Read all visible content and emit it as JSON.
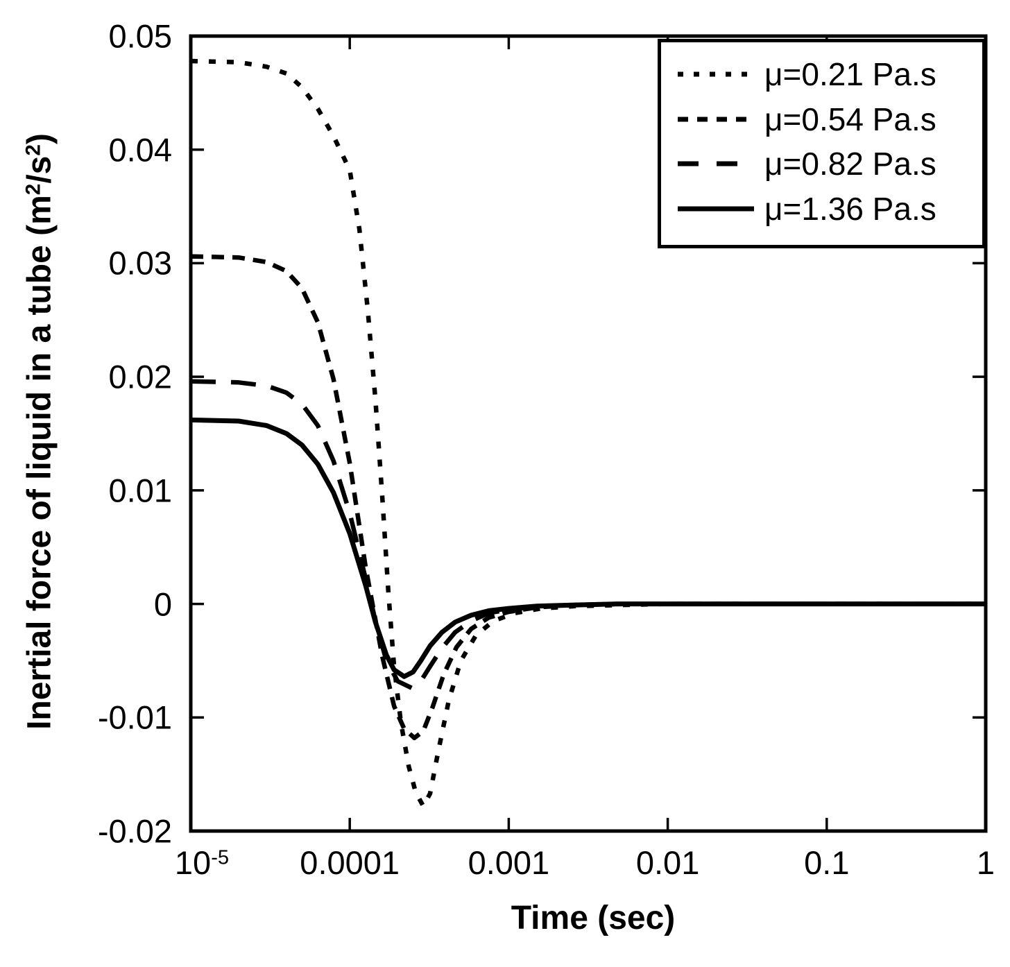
{
  "figure": {
    "background": "#ffffff",
    "ink": "#000000"
  },
  "chart_data": {
    "type": "line",
    "x_scale": "log",
    "grid": false,
    "xlabel": "Time (sec)",
    "ylabel_parts": {
      "pre": "Inertial force of liquid in a tube (m",
      "sup1": "2",
      "mid": "/s",
      "sup2": "2",
      "post": ")"
    },
    "xlim": [
      1e-05,
      1
    ],
    "ylim": [
      -0.02,
      0.05
    ],
    "x_ticks": [
      {
        "value": 1e-05,
        "label_base": "10",
        "label_exp": "-5"
      },
      {
        "value": 0.0001,
        "label": "0.0001"
      },
      {
        "value": 0.001,
        "label": "0.001"
      },
      {
        "value": 0.01,
        "label": "0.01"
      },
      {
        "value": 0.1,
        "label": "0.1"
      },
      {
        "value": 1,
        "label": "1"
      }
    ],
    "y_ticks": [
      {
        "value": 0.05,
        "label": "0.05"
      },
      {
        "value": 0.04,
        "label": "0.04"
      },
      {
        "value": 0.03,
        "label": "0.03"
      },
      {
        "value": 0.02,
        "label": "0.02"
      },
      {
        "value": 0.01,
        "label": "0.01"
      },
      {
        "value": 0,
        "label": "0"
      },
      {
        "value": -0.01,
        "label": "-0.01"
      },
      {
        "value": -0.02,
        "label": "-0.02"
      }
    ],
    "legend": {
      "position": "top-right",
      "entries": [
        {
          "label": "μ=0.21 Pa.s",
          "style": "dotted"
        },
        {
          "label": "μ=0.54 Pa.s",
          "style": "short-dash"
        },
        {
          "label": "μ=0.82 Pa.s",
          "style": "long-dash"
        },
        {
          "label": "μ=1.36 Pa.s",
          "style": "solid"
        }
      ]
    },
    "series": [
      {
        "name": "mu-0.21",
        "mu_pa_s": 0.21,
        "style": "dotted",
        "points": [
          [
            1e-05,
            0.0478
          ],
          [
            2e-05,
            0.0477
          ],
          [
            3e-05,
            0.0473
          ],
          [
            4e-05,
            0.0467
          ],
          [
            5e-05,
            0.0455
          ],
          [
            6.3e-05,
            0.0436
          ],
          [
            7.9e-05,
            0.0412
          ],
          [
            0.0001,
            0.0382
          ],
          [
            0.000115,
            0.033
          ],
          [
            0.00013,
            0.0258
          ],
          [
            0.000145,
            0.018
          ],
          [
            0.00016,
            0.0095
          ],
          [
            0.000175,
            0.001
          ],
          [
            0.00019,
            -0.0055
          ],
          [
            0.00021,
            -0.0105
          ],
          [
            0.000235,
            -0.0143
          ],
          [
            0.00026,
            -0.0166
          ],
          [
            0.00029,
            -0.0178
          ],
          [
            0.00032,
            -0.0167
          ],
          [
            0.00036,
            -0.013
          ],
          [
            0.00042,
            -0.0085
          ],
          [
            0.0005,
            -0.005
          ],
          [
            0.00062,
            -0.0028
          ],
          [
            0.0008,
            -0.0015
          ],
          [
            0.0011,
            -0.0008
          ],
          [
            0.0016,
            -0.0004
          ],
          [
            0.0026,
            -0.0002
          ],
          [
            0.005,
            -0.0001
          ],
          [
            0.01,
            0
          ],
          [
            0.1,
            0
          ],
          [
            1,
            0
          ]
        ]
      },
      {
        "name": "mu-0.54",
        "mu_pa_s": 0.54,
        "style": "short-dash",
        "points": [
          [
            1e-05,
            0.0306
          ],
          [
            2e-05,
            0.0305
          ],
          [
            3e-05,
            0.0301
          ],
          [
            4e-05,
            0.0293
          ],
          [
            5e-05,
            0.0278
          ],
          [
            6.3e-05,
            0.0248
          ],
          [
            7.9e-05,
            0.0198
          ],
          [
            0.0001,
            0.0124
          ],
          [
            0.000126,
            0.0032
          ],
          [
            0.00016,
            -0.0046
          ],
          [
            0.00019,
            -0.009
          ],
          [
            0.00022,
            -0.011
          ],
          [
            0.000255,
            -0.0118
          ],
          [
            0.00029,
            -0.0112
          ],
          [
            0.00033,
            -0.0092
          ],
          [
            0.00039,
            -0.0062
          ],
          [
            0.00047,
            -0.0038
          ],
          [
            0.00058,
            -0.0022
          ],
          [
            0.00075,
            -0.0012
          ],
          [
            0.001,
            -0.0007
          ],
          [
            0.0015,
            -0.0003
          ],
          [
            0.0025,
            -0.0001
          ],
          [
            0.005,
            0
          ],
          [
            0.01,
            0
          ],
          [
            0.1,
            0
          ],
          [
            1,
            0
          ]
        ]
      },
      {
        "name": "mu-0.82",
        "mu_pa_s": 0.82,
        "style": "long-dash",
        "points": [
          [
            1e-05,
            0.0196
          ],
          [
            2e-05,
            0.0195
          ],
          [
            3e-05,
            0.0192
          ],
          [
            4e-05,
            0.0186
          ],
          [
            5e-05,
            0.0176
          ],
          [
            6.3e-05,
            0.0157
          ],
          [
            7.9e-05,
            0.0126
          ],
          [
            0.0001,
            0.008
          ],
          [
            0.000126,
            0.0022
          ],
          [
            0.000148,
            -0.002
          ],
          [
            0.00017,
            -0.005
          ],
          [
            0.0002,
            -0.0068
          ],
          [
            0.000245,
            -0.0074
          ],
          [
            0.00028,
            -0.0068
          ],
          [
            0.00032,
            -0.0055
          ],
          [
            0.00038,
            -0.0039
          ],
          [
            0.00046,
            -0.0025
          ],
          [
            0.00058,
            -0.0015
          ],
          [
            0.00075,
            -0.0008
          ],
          [
            0.001,
            -0.0005
          ],
          [
            0.0016,
            -0.0002
          ],
          [
            0.0026,
            -0.0001
          ],
          [
            0.005,
            0
          ],
          [
            0.01,
            0
          ],
          [
            0.1,
            0
          ],
          [
            1,
            0
          ]
        ]
      },
      {
        "name": "mu-1.36",
        "mu_pa_s": 1.36,
        "style": "solid",
        "points": [
          [
            1e-05,
            0.0162
          ],
          [
            2e-05,
            0.0161
          ],
          [
            3e-05,
            0.0157
          ],
          [
            4e-05,
            0.015
          ],
          [
            5e-05,
            0.014
          ],
          [
            6.3e-05,
            0.0123
          ],
          [
            7.9e-05,
            0.0098
          ],
          [
            0.0001,
            0.0062
          ],
          [
            0.000126,
            0.0016
          ],
          [
            0.000145,
            -0.0016
          ],
          [
            0.00017,
            -0.0045
          ],
          [
            0.00019,
            -0.0058
          ],
          [
            0.00022,
            -0.0064
          ],
          [
            0.00025,
            -0.006
          ],
          [
            0.00028,
            -0.005
          ],
          [
            0.00032,
            -0.0037
          ],
          [
            0.00038,
            -0.0025
          ],
          [
            0.00046,
            -0.0016
          ],
          [
            0.00058,
            -0.001
          ],
          [
            0.00075,
            -0.0006
          ],
          [
            0.001,
            -0.0004
          ],
          [
            0.0015,
            -0.0002
          ],
          [
            0.0025,
            -0.0001
          ],
          [
            0.005,
            0
          ],
          [
            0.01,
            0
          ],
          [
            0.1,
            0
          ],
          [
            1,
            0
          ]
        ]
      }
    ]
  }
}
